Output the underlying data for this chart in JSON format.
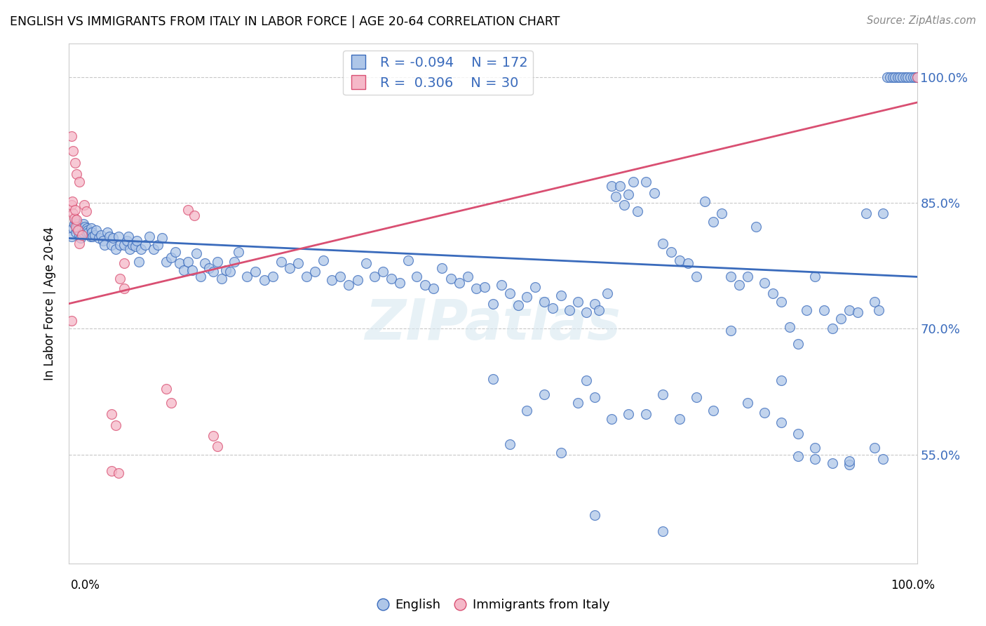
{
  "title": "ENGLISH VS IMMIGRANTS FROM ITALY IN LABOR FORCE | AGE 20-64 CORRELATION CHART",
  "source": "Source: ZipAtlas.com",
  "ylabel": "In Labor Force | Age 20-64",
  "xlim": [
    0.0,
    1.0
  ],
  "ylim": [
    0.42,
    1.04
  ],
  "yticks": [
    0.55,
    0.7,
    0.85,
    1.0
  ],
  "ytick_labels": [
    "55.0%",
    "70.0%",
    "85.0%",
    "100.0%"
  ],
  "legend_R_english": "-0.094",
  "legend_N_english": "172",
  "legend_R_italy": "0.306",
  "legend_N_italy": "30",
  "english_color": "#aec6e8",
  "italy_color": "#f5b8c8",
  "english_line_color": "#3a6bbc",
  "italy_line_color": "#d94f72",
  "watermark": "ZIPatlas",
  "background_color": "#ffffff",
  "grid_color": "#c8c8c8",
  "eng_trend": [
    0.0,
    0.808,
    1.0,
    0.762
  ],
  "ita_trend": [
    0.0,
    0.73,
    1.0,
    0.97
  ],
  "english_scatter": [
    [
      0.003,
      0.81
    ],
    [
      0.005,
      0.82
    ],
    [
      0.006,
      0.825
    ],
    [
      0.007,
      0.83
    ],
    [
      0.008,
      0.815
    ],
    [
      0.009,
      0.82
    ],
    [
      0.01,
      0.825
    ],
    [
      0.011,
      0.818
    ],
    [
      0.012,
      0.812
    ],
    [
      0.013,
      0.82
    ],
    [
      0.014,
      0.808
    ],
    [
      0.015,
      0.82
    ],
    [
      0.016,
      0.815
    ],
    [
      0.017,
      0.825
    ],
    [
      0.018,
      0.818
    ],
    [
      0.019,
      0.822
    ],
    [
      0.02,
      0.815
    ],
    [
      0.021,
      0.82
    ],
    [
      0.022,
      0.818
    ],
    [
      0.023,
      0.815
    ],
    [
      0.025,
      0.81
    ],
    [
      0.026,
      0.82
    ],
    [
      0.027,
      0.815
    ],
    [
      0.028,
      0.81
    ],
    [
      0.03,
      0.812
    ],
    [
      0.032,
      0.818
    ],
    [
      0.035,
      0.808
    ],
    [
      0.038,
      0.812
    ],
    [
      0.04,
      0.805
    ],
    [
      0.042,
      0.8
    ],
    [
      0.045,
      0.815
    ],
    [
      0.048,
      0.81
    ],
    [
      0.05,
      0.8
    ],
    [
      0.052,
      0.808
    ],
    [
      0.055,
      0.795
    ],
    [
      0.058,
      0.81
    ],
    [
      0.06,
      0.8
    ],
    [
      0.065,
      0.8
    ],
    [
      0.068,
      0.805
    ],
    [
      0.07,
      0.81
    ],
    [
      0.072,
      0.795
    ],
    [
      0.075,
      0.8
    ],
    [
      0.078,
      0.798
    ],
    [
      0.08,
      0.805
    ],
    [
      0.082,
      0.78
    ],
    [
      0.085,
      0.795
    ],
    [
      0.09,
      0.8
    ],
    [
      0.095,
      0.81
    ],
    [
      0.1,
      0.795
    ],
    [
      0.105,
      0.8
    ],
    [
      0.11,
      0.808
    ],
    [
      0.115,
      0.78
    ],
    [
      0.12,
      0.785
    ],
    [
      0.125,
      0.792
    ],
    [
      0.13,
      0.778
    ],
    [
      0.135,
      0.77
    ],
    [
      0.14,
      0.78
    ],
    [
      0.145,
      0.77
    ],
    [
      0.15,
      0.79
    ],
    [
      0.155,
      0.762
    ],
    [
      0.16,
      0.778
    ],
    [
      0.165,
      0.772
    ],
    [
      0.17,
      0.768
    ],
    [
      0.175,
      0.78
    ],
    [
      0.18,
      0.76
    ],
    [
      0.185,
      0.77
    ],
    [
      0.19,
      0.768
    ],
    [
      0.195,
      0.78
    ],
    [
      0.2,
      0.792
    ],
    [
      0.21,
      0.762
    ],
    [
      0.22,
      0.768
    ],
    [
      0.23,
      0.758
    ],
    [
      0.24,
      0.762
    ],
    [
      0.25,
      0.78
    ],
    [
      0.26,
      0.772
    ],
    [
      0.27,
      0.778
    ],
    [
      0.28,
      0.762
    ],
    [
      0.29,
      0.768
    ],
    [
      0.3,
      0.782
    ],
    [
      0.31,
      0.758
    ],
    [
      0.32,
      0.762
    ],
    [
      0.33,
      0.752
    ],
    [
      0.34,
      0.758
    ],
    [
      0.35,
      0.778
    ],
    [
      0.36,
      0.762
    ],
    [
      0.37,
      0.768
    ],
    [
      0.38,
      0.76
    ],
    [
      0.39,
      0.755
    ],
    [
      0.4,
      0.782
    ],
    [
      0.41,
      0.762
    ],
    [
      0.42,
      0.752
    ],
    [
      0.43,
      0.748
    ],
    [
      0.44,
      0.772
    ],
    [
      0.45,
      0.76
    ],
    [
      0.46,
      0.755
    ],
    [
      0.47,
      0.762
    ],
    [
      0.48,
      0.748
    ],
    [
      0.49,
      0.75
    ],
    [
      0.5,
      0.73
    ],
    [
      0.51,
      0.752
    ],
    [
      0.52,
      0.742
    ],
    [
      0.53,
      0.728
    ],
    [
      0.54,
      0.738
    ],
    [
      0.55,
      0.75
    ],
    [
      0.56,
      0.732
    ],
    [
      0.57,
      0.725
    ],
    [
      0.58,
      0.74
    ],
    [
      0.59,
      0.722
    ],
    [
      0.6,
      0.732
    ],
    [
      0.61,
      0.72
    ],
    [
      0.62,
      0.73
    ],
    [
      0.625,
      0.722
    ],
    [
      0.635,
      0.742
    ],
    [
      0.64,
      0.87
    ],
    [
      0.645,
      0.858
    ],
    [
      0.65,
      0.87
    ],
    [
      0.655,
      0.848
    ],
    [
      0.66,
      0.86
    ],
    [
      0.665,
      0.875
    ],
    [
      0.67,
      0.84
    ],
    [
      0.68,
      0.875
    ],
    [
      0.69,
      0.862
    ],
    [
      0.7,
      0.802
    ],
    [
      0.71,
      0.792
    ],
    [
      0.72,
      0.782
    ],
    [
      0.73,
      0.778
    ],
    [
      0.74,
      0.762
    ],
    [
      0.75,
      0.852
    ],
    [
      0.76,
      0.828
    ],
    [
      0.77,
      0.838
    ],
    [
      0.78,
      0.762
    ],
    [
      0.79,
      0.752
    ],
    [
      0.8,
      0.762
    ],
    [
      0.81,
      0.822
    ],
    [
      0.82,
      0.755
    ],
    [
      0.83,
      0.742
    ],
    [
      0.84,
      0.732
    ],
    [
      0.85,
      0.702
    ],
    [
      0.86,
      0.682
    ],
    [
      0.87,
      0.722
    ],
    [
      0.88,
      0.762
    ],
    [
      0.89,
      0.722
    ],
    [
      0.9,
      0.7
    ],
    [
      0.91,
      0.712
    ],
    [
      0.92,
      0.722
    ],
    [
      0.93,
      0.72
    ],
    [
      0.94,
      0.838
    ],
    [
      0.95,
      0.732
    ],
    [
      0.955,
      0.722
    ],
    [
      0.96,
      0.838
    ],
    [
      0.965,
      1.0
    ],
    [
      0.968,
      1.0
    ],
    [
      0.971,
      1.0
    ],
    [
      0.974,
      1.0
    ],
    [
      0.977,
      1.0
    ],
    [
      0.98,
      1.0
    ],
    [
      0.983,
      1.0
    ],
    [
      0.986,
      1.0
    ],
    [
      0.989,
      1.0
    ],
    [
      0.992,
      1.0
    ],
    [
      0.995,
      1.0
    ],
    [
      0.998,
      1.0
    ],
    [
      1.0,
      1.0
    ],
    [
      0.5,
      0.64
    ],
    [
      0.52,
      0.562
    ],
    [
      0.54,
      0.602
    ],
    [
      0.56,
      0.622
    ],
    [
      0.58,
      0.552
    ],
    [
      0.6,
      0.612
    ],
    [
      0.61,
      0.638
    ],
    [
      0.62,
      0.618
    ],
    [
      0.64,
      0.592
    ],
    [
      0.66,
      0.598
    ],
    [
      0.68,
      0.598
    ],
    [
      0.7,
      0.622
    ],
    [
      0.72,
      0.592
    ],
    [
      0.74,
      0.618
    ],
    [
      0.76,
      0.602
    ],
    [
      0.78,
      0.698
    ],
    [
      0.8,
      0.612
    ],
    [
      0.82,
      0.6
    ],
    [
      0.84,
      0.588
    ],
    [
      0.86,
      0.548
    ],
    [
      0.88,
      0.545
    ],
    [
      0.9,
      0.54
    ],
    [
      0.92,
      0.538
    ],
    [
      0.62,
      0.478
    ],
    [
      0.7,
      0.458
    ],
    [
      0.84,
      0.638
    ],
    [
      0.86,
      0.575
    ],
    [
      0.88,
      0.558
    ],
    [
      0.92,
      0.542
    ],
    [
      0.95,
      0.558
    ],
    [
      0.96,
      0.545
    ]
  ],
  "italy_scatter": [
    [
      0.003,
      0.848
    ],
    [
      0.004,
      0.852
    ],
    [
      0.005,
      0.838
    ],
    [
      0.006,
      0.832
    ],
    [
      0.007,
      0.842
    ],
    [
      0.008,
      0.822
    ],
    [
      0.009,
      0.83
    ],
    [
      0.01,
      0.818
    ],
    [
      0.012,
      0.802
    ],
    [
      0.015,
      0.812
    ],
    [
      0.018,
      0.848
    ],
    [
      0.02,
      0.84
    ],
    [
      0.003,
      0.93
    ],
    [
      0.005,
      0.912
    ],
    [
      0.007,
      0.898
    ],
    [
      0.009,
      0.885
    ],
    [
      0.012,
      0.875
    ],
    [
      0.003,
      0.71
    ],
    [
      0.06,
      0.76
    ],
    [
      0.065,
      0.748
    ],
    [
      0.05,
      0.598
    ],
    [
      0.055,
      0.585
    ],
    [
      0.065,
      0.778
    ],
    [
      0.115,
      0.628
    ],
    [
      0.12,
      0.612
    ],
    [
      0.14,
      0.842
    ],
    [
      0.148,
      0.835
    ],
    [
      0.05,
      0.53
    ],
    [
      0.058,
      0.528
    ],
    [
      0.17,
      0.572
    ],
    [
      0.175,
      0.56
    ],
    [
      1.0,
      1.0
    ]
  ]
}
